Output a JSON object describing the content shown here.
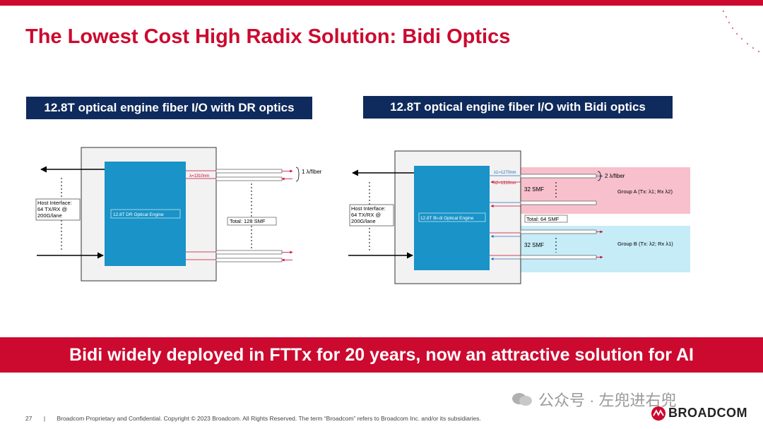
{
  "slide": {
    "title": "The Lowest Cost High Radix Solution: Bidi Optics",
    "banner": "Bidi widely deployed in FTTx for 20 years, now an attractive solution for AI",
    "page_number": "27",
    "footer_separator": "|",
    "footer_text": "Broadcom Proprietary and Confidential.  Copyright © 2023 Broadcom.  All Rights Reserved. The term “Broadcom” refers to Broadcom Inc. and/or its subsidiaries.",
    "brand": "BROADCOM",
    "watermark": "公众号 · 左兜进右兜"
  },
  "left_diagram": {
    "heading": "12.8T optical engine fiber I/O with DR optics",
    "engine_label": "12.8T DR Optical Engine",
    "host_interface": [
      "Host Interface:",
      "64 TX/RX @",
      "200G/lane"
    ],
    "wavelength": "λ=1310nm",
    "fiber_note": "1 λ/fiber",
    "total": "Total: 128 SMF"
  },
  "right_diagram": {
    "heading": "12.8T optical engine fiber I/O with Bidi optics",
    "engine_label": "12.8T Bi-di Optical Engine",
    "host_interface": [
      "Host Interface:",
      "64 TX/RX @",
      "200G/lane"
    ],
    "wavelength_1": "λ1=1270nm",
    "wavelength_2": "λ2=1310nm",
    "fiber_note": "2 λ/fiber",
    "group_a_smf": "32 SMF",
    "group_a": "Group A  (Tx: λ1; Rx λ2)",
    "total": "Total: 64 SMF",
    "group_b_smf": "32 SMF",
    "group_b": "Group B  (Tx: λ2; Rx λ1)"
  },
  "colors": {
    "accent": "#cc092f",
    "navy": "#0f2a5c",
    "engine_blue": "#1993c8",
    "group_a": "#f7c0cc",
    "group_b": "#c6ecf7"
  }
}
